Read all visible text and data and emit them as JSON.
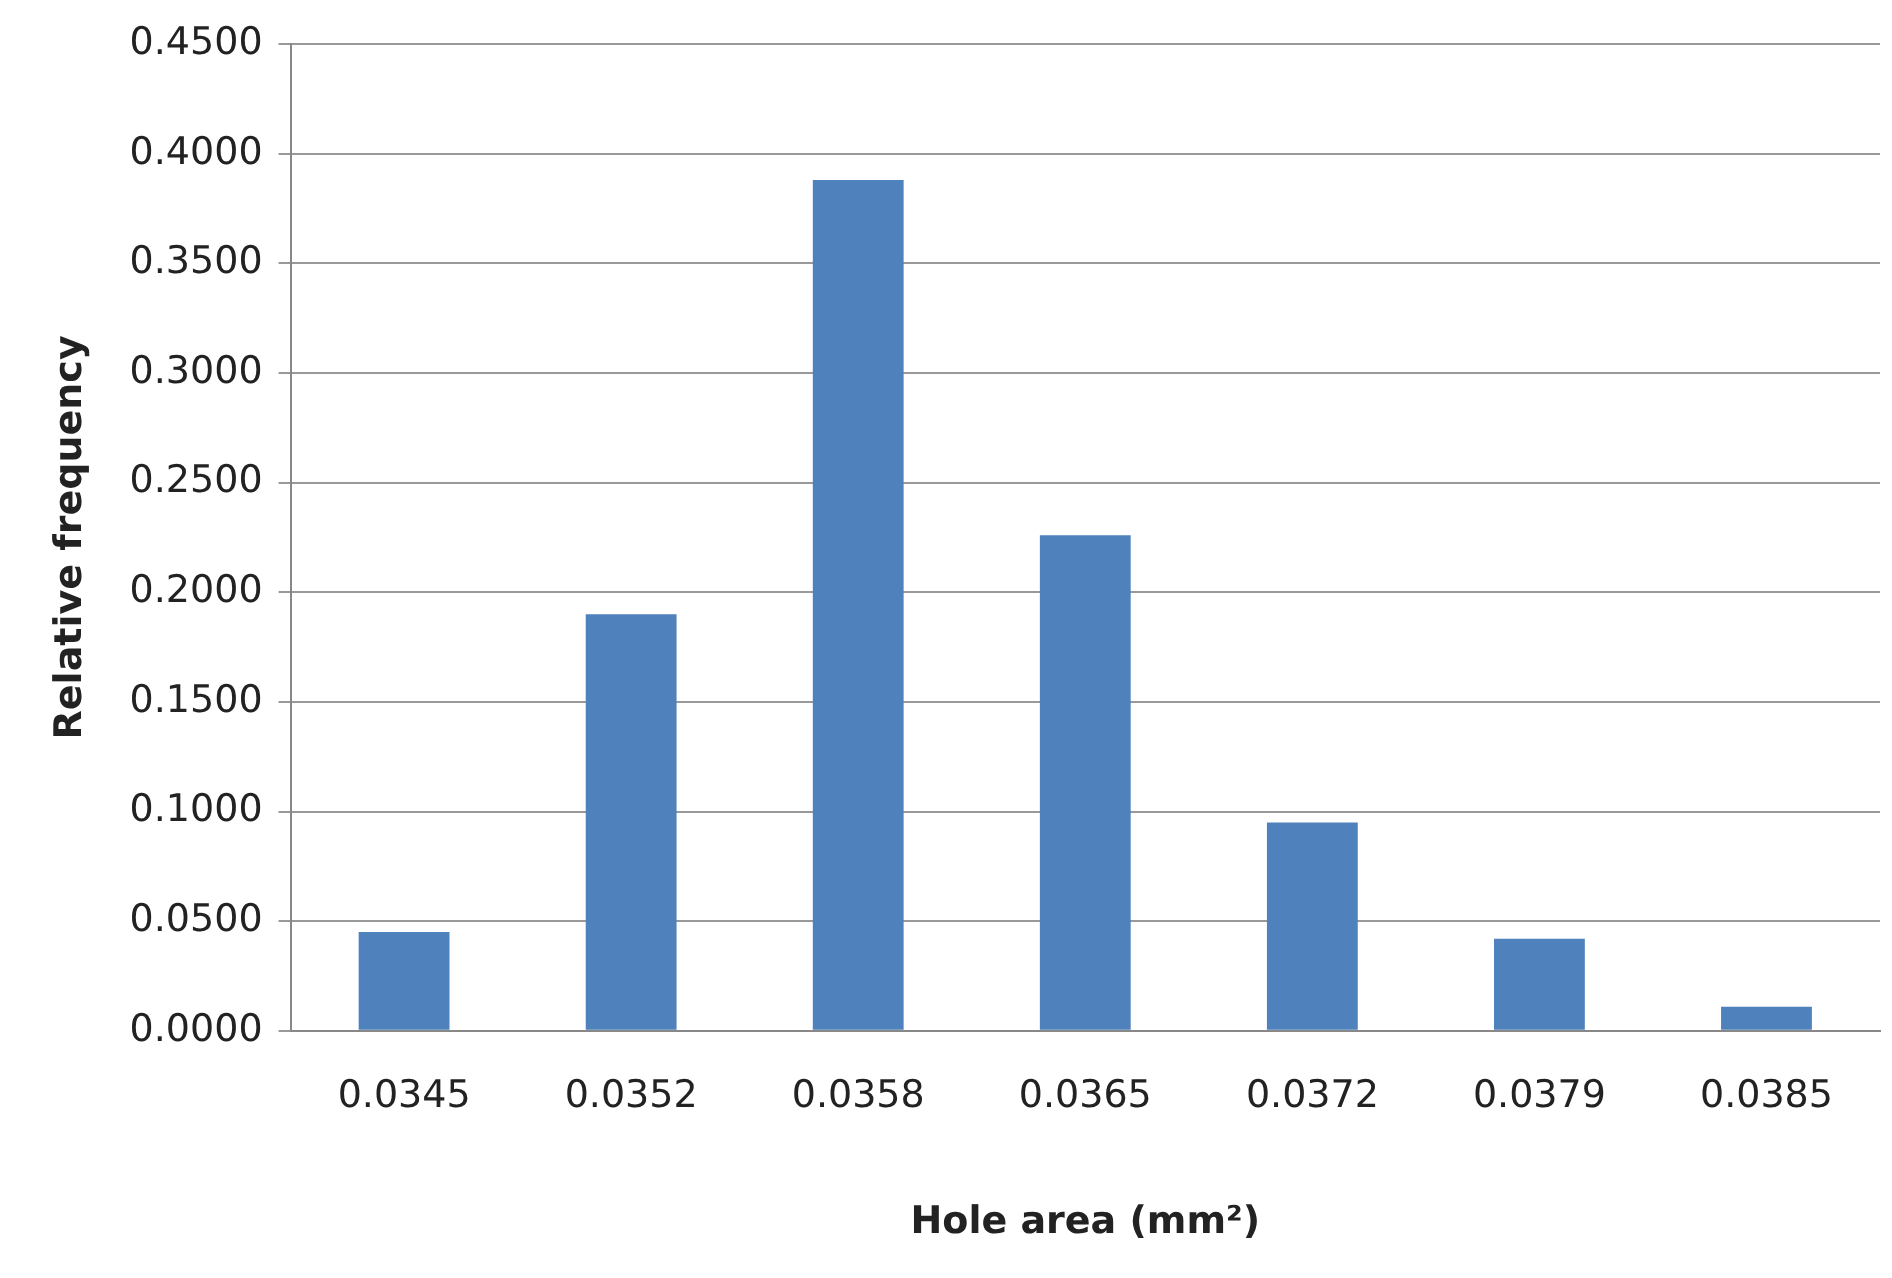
{
  "chart_data": {
    "type": "bar",
    "xlabel": "Hole area (mm²)",
    "ylabel": "Relative frequency",
    "categories": [
      "0.0345",
      "0.0352",
      "0.0358",
      "0.0365",
      "0.0372",
      "0.0379",
      "0.0385"
    ],
    "values": [
      0.045,
      0.19,
      0.388,
      0.226,
      0.095,
      0.042,
      0.011
    ],
    "color": "#4f81bd",
    "ylim": [
      0,
      0.45
    ],
    "yticks": [
      {
        "value": 0,
        "label": "0.0000"
      },
      {
        "value": 0.05,
        "label": "0.0500"
      },
      {
        "value": 0.1,
        "label": "0.1000"
      },
      {
        "value": 0.15,
        "label": "0.1500"
      },
      {
        "value": 0.2,
        "label": "0.2000"
      },
      {
        "value": 0.25,
        "label": "0.2500"
      },
      {
        "value": 0.3,
        "label": "0.3000"
      },
      {
        "value": 0.35,
        "label": "0.3500"
      },
      {
        "value": 0.4,
        "label": "0.4000"
      },
      {
        "value": 0.45,
        "label": "0.4500"
      }
    ],
    "grid": "y"
  }
}
